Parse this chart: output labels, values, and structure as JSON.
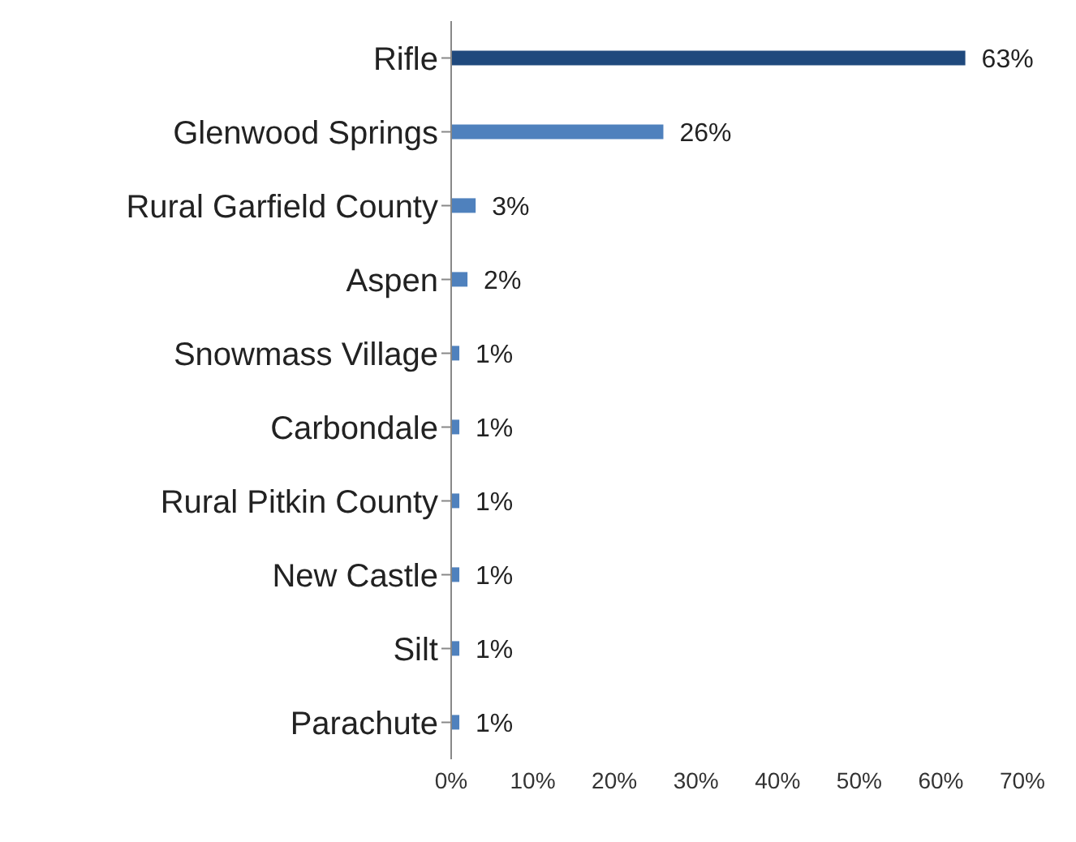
{
  "chart_data": {
    "type": "bar",
    "orientation": "horizontal",
    "categories": [
      "Rifle",
      "Glenwood Springs",
      "Rural Garfield County",
      "Aspen",
      "Snowmass Village",
      "Carbondale",
      "Rural Pitkin County",
      "New Castle",
      "Silt",
      "Parachute"
    ],
    "values": [
      63,
      26,
      3,
      2,
      1,
      1,
      1,
      1,
      1,
      1
    ],
    "colors": [
      "#1f497d",
      "#4f81bd",
      "#4f81bd",
      "#4f81bd",
      "#4f81bd",
      "#4f81bd",
      "#4f81bd",
      "#4f81bd",
      "#4f81bd",
      "#4f81bd"
    ],
    "value_labels": [
      "63%",
      "26%",
      "3%",
      "2%",
      "1%",
      "1%",
      "1%",
      "1%",
      "1%",
      "1%"
    ],
    "xlim": [
      0,
      70
    ],
    "xticks": [
      {
        "value": 0,
        "label": "0%"
      },
      {
        "value": 10,
        "label": "10%"
      },
      {
        "value": 20,
        "label": "20%"
      },
      {
        "value": 30,
        "label": "30%"
      },
      {
        "value": 40,
        "label": "40%"
      },
      {
        "value": 50,
        "label": "50%"
      },
      {
        "value": 60,
        "label": "60%"
      },
      {
        "value": 70,
        "label": "70%"
      }
    ],
    "grid": false,
    "legend": false
  }
}
